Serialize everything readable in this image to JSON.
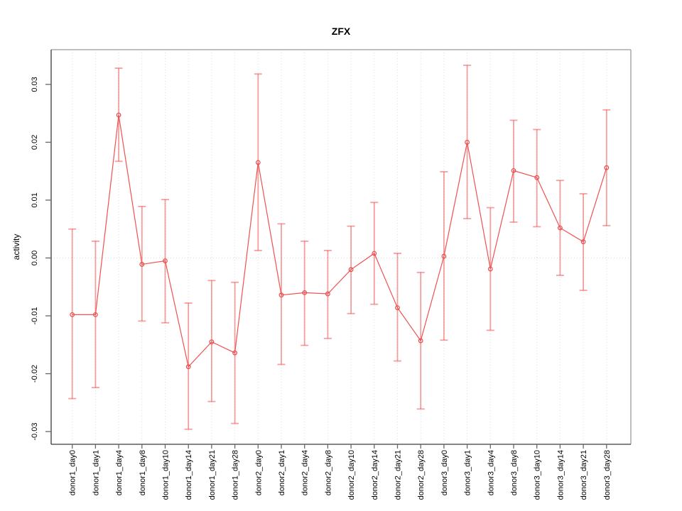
{
  "title": "ZFX",
  "chart_data": {
    "type": "line",
    "title": "ZFX",
    "xlabel": "",
    "ylabel": "activity",
    "ylim": [
      -0.0322,
      0.036
    ],
    "yticks": [
      0.03,
      0.02,
      0.01,
      0.0,
      -0.01,
      -0.02,
      -0.03
    ],
    "ytick_labels": [
      "0.03",
      "0.02",
      "0.01",
      "0.00",
      "-0.01",
      "-0.02",
      "-0.03"
    ],
    "grid": "vertical dotted gridline at every category; horizontal dotted line at y=0; no legend",
    "legend": null,
    "point_style": "open-circle",
    "categories": [
      "donor1_day0",
      "donor1_day1",
      "donor1_day4",
      "donor1_day8",
      "donor1_day10",
      "donor1_day14",
      "donor1_day21",
      "donor1_day28",
      "donor2_day0",
      "donor2_day1",
      "donor2_day4",
      "donor2_day8",
      "donor2_day10",
      "donor2_day14",
      "donor2_day21",
      "donor2_day28",
      "donor3_day0",
      "donor3_day1",
      "donor3_day4",
      "donor3_day8",
      "donor3_day10",
      "donor3_day14",
      "donor3_day21",
      "donor3_day28"
    ],
    "series": [
      {
        "name": "activity",
        "values": [
          -0.0098,
          -0.0098,
          0.0247,
          -0.0011,
          -0.0005,
          -0.0188,
          -0.0145,
          -0.0164,
          0.0165,
          -0.0064,
          -0.006,
          -0.0062,
          -0.002,
          0.0008,
          -0.0086,
          -0.0143,
          0.0003,
          0.02,
          -0.0019,
          0.0151,
          0.0139,
          0.0052,
          0.0028,
          0.0156
        ],
        "error_lower": [
          -0.0243,
          -0.0224,
          0.0167,
          -0.0109,
          -0.0112,
          -0.0296,
          -0.0248,
          -0.0286,
          0.0013,
          -0.0184,
          -0.0151,
          -0.0139,
          -0.0096,
          -0.008,
          -0.0178,
          -0.0261,
          -0.0142,
          0.0068,
          -0.0125,
          0.0062,
          0.0054,
          -0.003,
          -0.0056,
          0.0056
        ],
        "error_upper": [
          0.005,
          0.0029,
          0.0328,
          0.0089,
          0.0101,
          -0.0078,
          -0.0039,
          -0.0042,
          0.0318,
          0.0059,
          0.0029,
          0.0013,
          0.0055,
          0.0096,
          0.0008,
          -0.0025,
          0.0149,
          0.0333,
          0.0087,
          0.0238,
          0.0222,
          0.0134,
          0.0111,
          0.0256
        ]
      }
    ]
  },
  "colors": {
    "line": "#ee5252",
    "point_stroke": "#e84c4c",
    "error_bar": "rgba(238,82,82,0.55)",
    "gridline": "#dcdcdc",
    "zero_line": "#d6d6d6",
    "box_light": "#aaaaaa",
    "axis_dark": "#3a3a3a",
    "tick": "#666666",
    "background": "#ffffff"
  }
}
